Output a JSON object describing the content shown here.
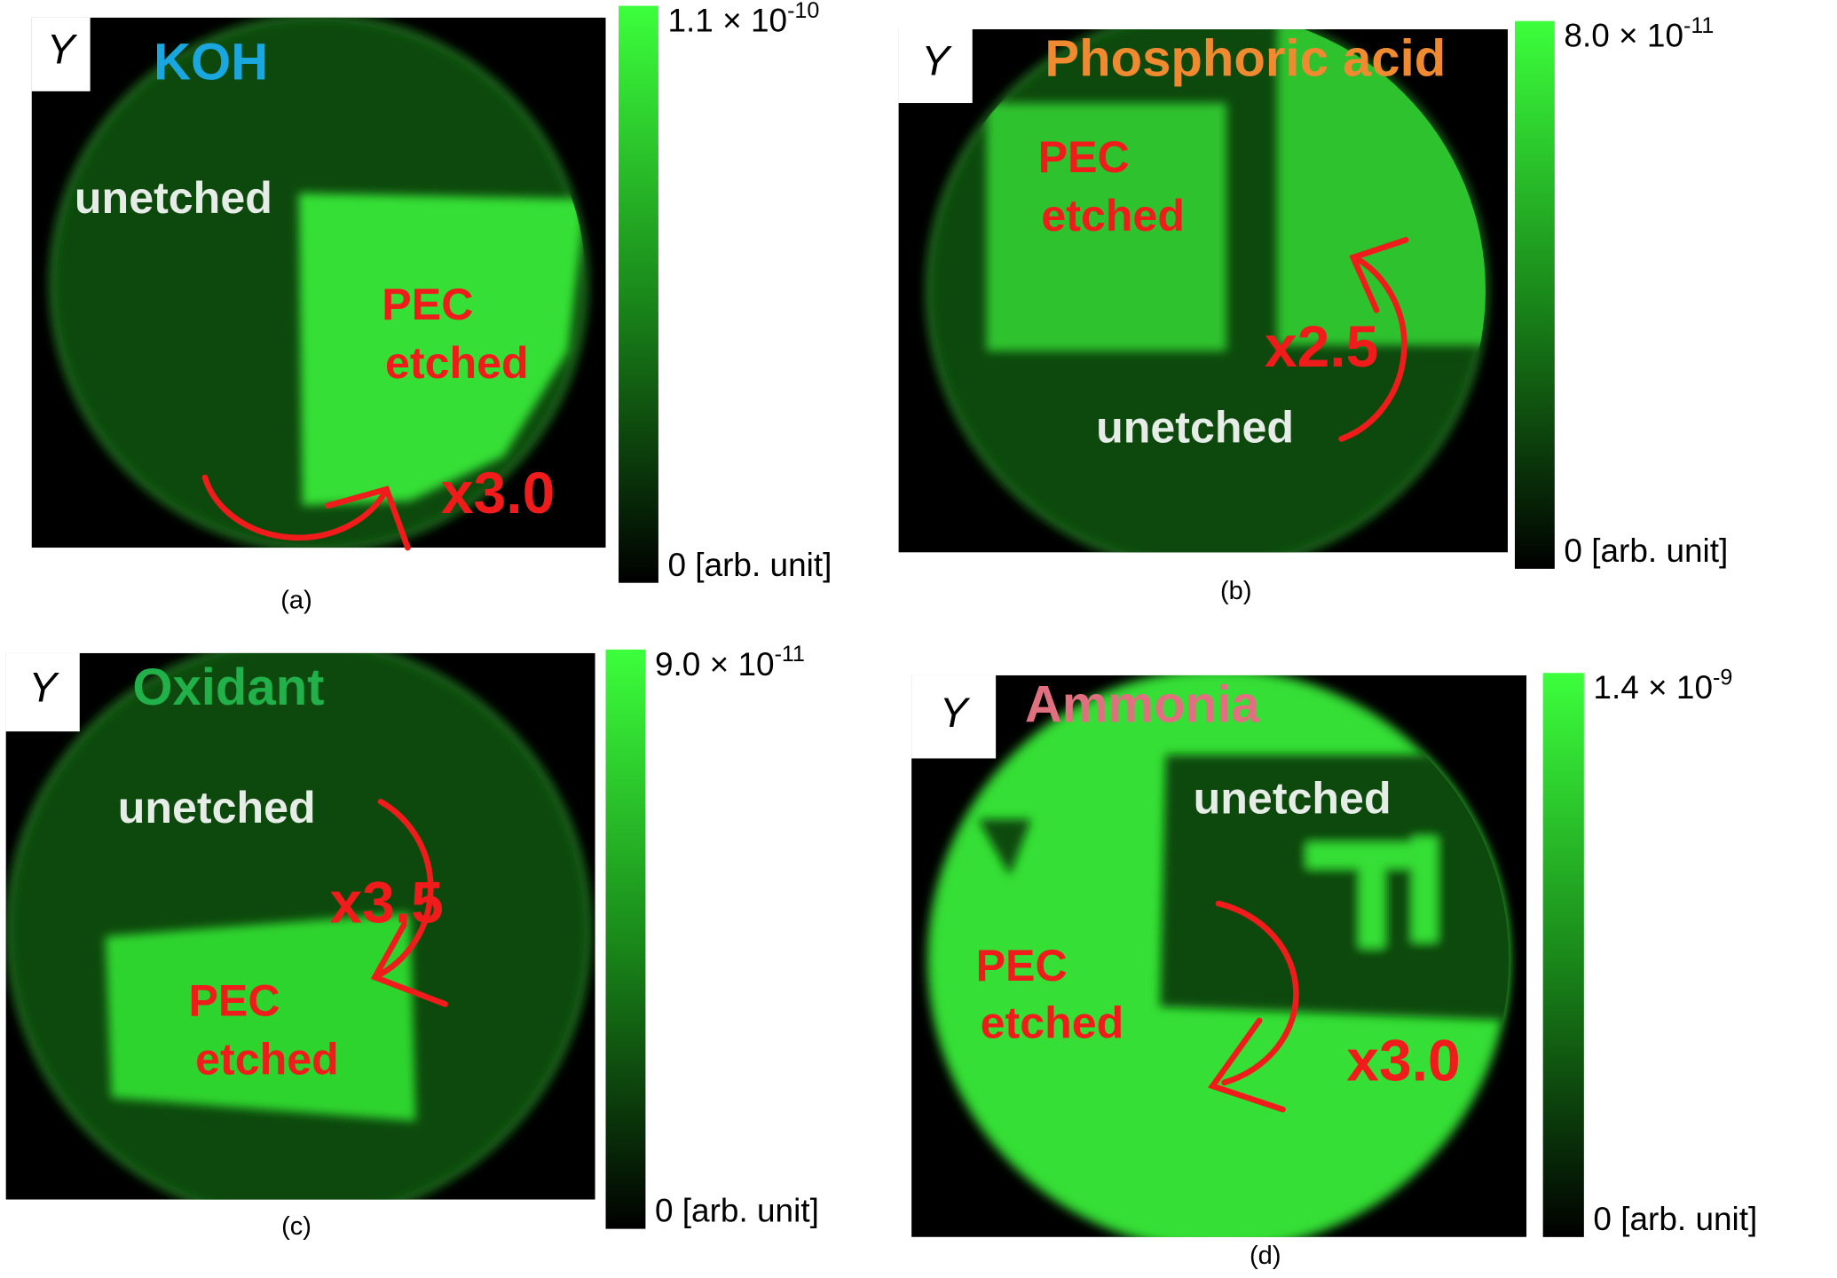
{
  "figure": {
    "panels": [
      {
        "label": "(a)",
        "title": "KOH",
        "axis_label": "Y",
        "colorbar": {
          "max": {
            "base": "1.1 × 10",
            "exponent": "-10"
          },
          "min": "0 [arb. unit]"
        },
        "annotations": [
          "unetched",
          "PEC",
          "etched",
          "x3.0"
        ]
      },
      {
        "label": "(b)",
        "title": "Phosphoric acid",
        "axis_label": "Y",
        "colorbar": {
          "max": {
            "base": "8.0 × 10",
            "exponent": "-11"
          },
          "min": "0 [arb. unit]"
        },
        "annotations": [
          "PEC",
          "etched",
          "x2.5",
          "unetched"
        ]
      },
      {
        "label": "(c)",
        "title": "Oxidant",
        "axis_label": "Y",
        "colorbar": {
          "max": {
            "base": "9.0 × 10",
            "exponent": "-11"
          },
          "min": "0 [arb. unit]"
        },
        "annotations": [
          "unetched",
          "x3.5",
          "PEC",
          "etched"
        ]
      },
      {
        "label": "(d)",
        "title": "Ammonia",
        "axis_label": "Y",
        "colorbar": {
          "max": {
            "base": "1.4 × 10",
            "exponent": "-9"
          },
          "min": "0 [arb. unit]"
        },
        "annotations": [
          "unetched",
          "PEC",
          "etched",
          "x3.0"
        ]
      }
    ]
  }
}
